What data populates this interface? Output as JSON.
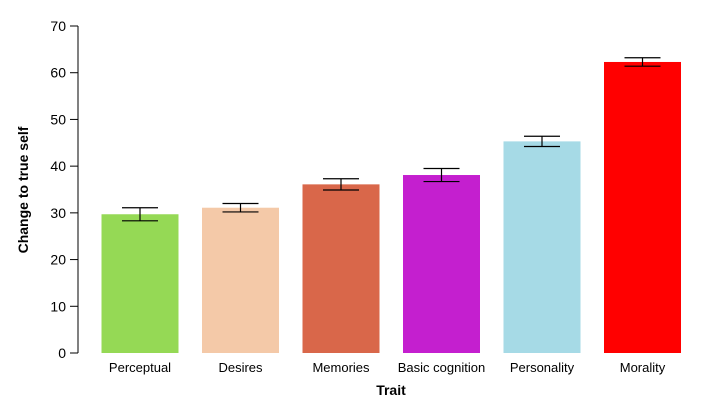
{
  "chart_data": {
    "type": "bar",
    "xlabel": "Trait",
    "ylabel": "Change to true self",
    "ylim": [
      0,
      70
    ],
    "yticks": [
      0,
      10,
      20,
      30,
      40,
      50,
      60,
      70
    ],
    "grid": false,
    "categories": [
      "Perceptual",
      "Desires",
      "Memories",
      "Basic cognition",
      "Personality",
      "Morality"
    ],
    "values": [
      29.7,
      31.1,
      36.1,
      38.1,
      45.3,
      62.3
    ],
    "error": [
      1.4,
      0.9,
      1.2,
      1.4,
      1.1,
      0.9
    ],
    "colors": [
      "#95d955",
      "#f4c9a8",
      "#d9674a",
      "#c41fcf",
      "#a6dae6",
      "#ff0000"
    ]
  }
}
